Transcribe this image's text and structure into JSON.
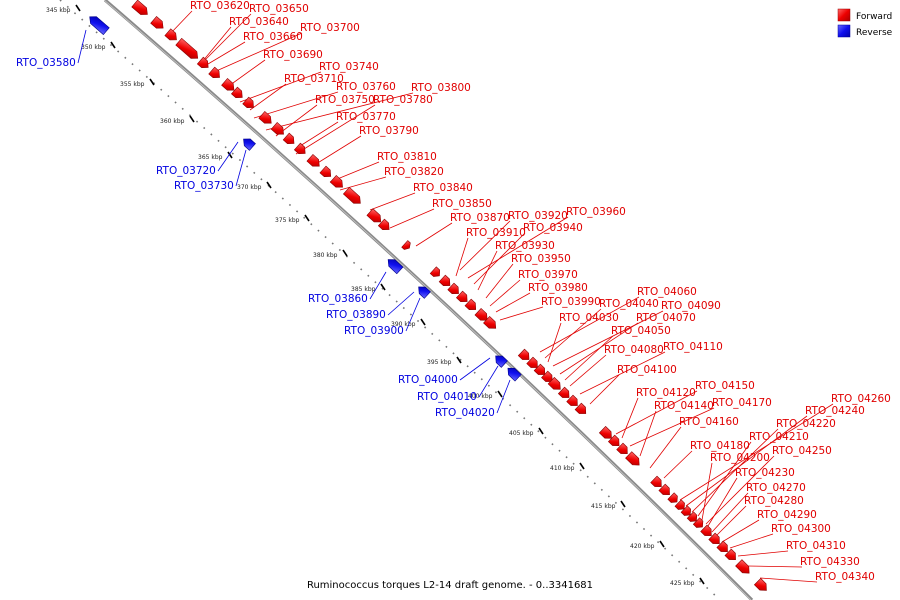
{
  "title": "Ruminococcus torques L2-14 draft genome. - 0..3341681",
  "legend": [
    {
      "label": "Forward",
      "color": "#ee0000"
    },
    {
      "label": "Reverse",
      "color": "#1010ee"
    }
  ],
  "colors": {
    "forward": "#ee0000",
    "reverse": "#1010ee",
    "backbone": "#888888"
  },
  "ticks": [
    {
      "kbp": 345,
      "label": "345 kbp"
    },
    {
      "kbp": 350,
      "label": "350 kbp"
    },
    {
      "kbp": 355,
      "label": "355 kbp"
    },
    {
      "kbp": 360,
      "label": "360 kbp"
    },
    {
      "kbp": 365,
      "label": "365 kbp"
    },
    {
      "kbp": 370,
      "label": "370 kbp"
    },
    {
      "kbp": 375,
      "label": "375 kbp"
    },
    {
      "kbp": 380,
      "label": "380 kbp"
    },
    {
      "kbp": 385,
      "label": "385 kbp"
    },
    {
      "kbp": 390,
      "label": "390 kbp"
    },
    {
      "kbp": 395,
      "label": "395 kbp"
    },
    {
      "kbp": 400,
      "label": "400 kbp"
    },
    {
      "kbp": 405,
      "label": "405 kbp"
    },
    {
      "kbp": 410,
      "label": "410 kbp"
    },
    {
      "kbp": 415,
      "label": "415 kbp"
    },
    {
      "kbp": 420,
      "label": "420 kbp"
    },
    {
      "kbp": 425,
      "label": "425 kbp"
    }
  ],
  "forward_genes": [
    "RTO_03620",
    "RTO_03640",
    "RTO_03650",
    "RTO_03660",
    "RTO_03690",
    "RTO_03700",
    "RTO_03710",
    "RTO_03740",
    "RTO_03750",
    "RTO_03760",
    "RTO_03770",
    "RTO_03780",
    "RTO_03790",
    "RTO_03800",
    "RTO_03810",
    "RTO_03820",
    "RTO_03840",
    "RTO_03850",
    "RTO_03870",
    "RTO_03910",
    "RTO_03920",
    "RTO_03930",
    "RTO_03940",
    "RTO_03950",
    "RTO_03960",
    "RTO_03970",
    "RTO_03980",
    "RTO_03990",
    "RTO_04030",
    "RTO_04040",
    "RTO_04050",
    "RTO_04060",
    "RTO_04070",
    "RTO_04080",
    "RTO_04090",
    "RTO_04100",
    "RTO_04110",
    "RTO_04120",
    "RTO_04140",
    "RTO_04150",
    "RTO_04160",
    "RTO_04170",
    "RTO_04180",
    "RTO_04200",
    "RTO_04210",
    "RTO_04220",
    "RTO_04230",
    "RTO_04240",
    "RTO_04250",
    "RTO_04260",
    "RTO_04270",
    "RTO_04280",
    "RTO_04290",
    "RTO_04300",
    "RTO_04310",
    "RTO_04330",
    "RTO_04340"
  ],
  "reverse_genes": [
    "RTO_03580",
    "RTO_03720",
    "RTO_03730",
    "RTO_03860",
    "RTO_03890",
    "RTO_03900",
    "RTO_04000",
    "RTO_04010",
    "RTO_04020"
  ]
}
